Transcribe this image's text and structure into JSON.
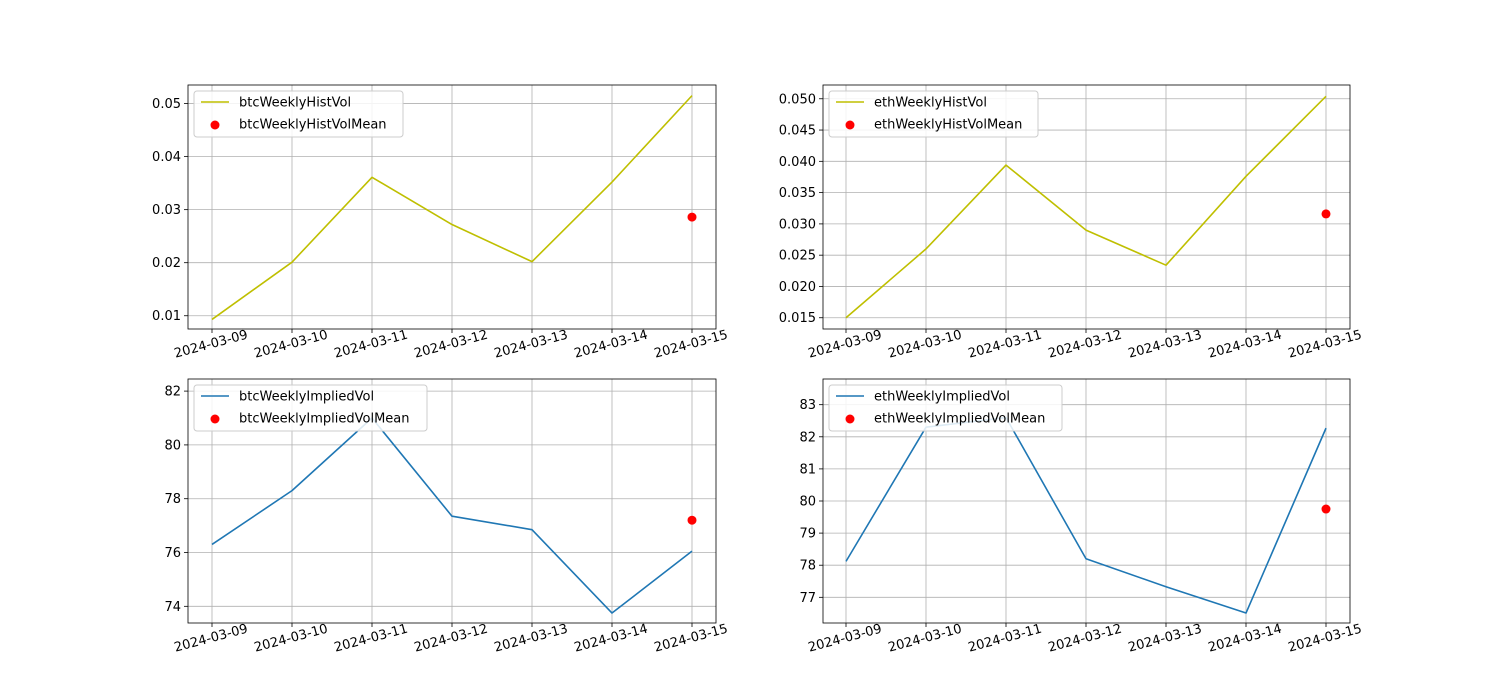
{
  "chart_data": [
    {
      "type": "line",
      "x": [
        "2024-03-09",
        "2024-03-10",
        "2024-03-11",
        "2024-03-12",
        "2024-03-13",
        "2024-03-14",
        "2024-03-15"
      ],
      "series": [
        {
          "name": "btcWeeklyHistVol",
          "kind": "line",
          "color": "#bfbf00",
          "values": [
            0.0093,
            0.0201,
            0.0361,
            0.0272,
            0.0202,
            0.0352,
            0.0515
          ]
        },
        {
          "name": "btcWeeklyHistVolMean",
          "kind": "scatter",
          "color": "#ff0000",
          "points": [
            {
              "x": "2024-03-15",
              "y": 0.0286
            }
          ]
        }
      ],
      "ylim": [
        0.0075,
        0.0535
      ],
      "yticks": [
        "0.01",
        "0.02",
        "0.03",
        "0.04",
        "0.05"
      ],
      "ytick_values": [
        0.01,
        0.02,
        0.03,
        0.04,
        0.05
      ],
      "grid": true,
      "legend": "top-left"
    },
    {
      "type": "line",
      "x": [
        "2024-03-09",
        "2024-03-10",
        "2024-03-11",
        "2024-03-12",
        "2024-03-13",
        "2024-03-14",
        "2024-03-15"
      ],
      "series": [
        {
          "name": "ethWeeklyHistVol",
          "kind": "line",
          "color": "#bfbf00",
          "values": [
            0.015,
            0.026,
            0.0394,
            0.029,
            0.0234,
            0.0376,
            0.0504
          ]
        },
        {
          "name": "ethWeeklyHistVolMean",
          "kind": "scatter",
          "color": "#ff0000",
          "points": [
            {
              "x": "2024-03-15",
              "y": 0.0316
            }
          ]
        }
      ],
      "ylim": [
        0.0132,
        0.0522
      ],
      "yticks": [
        "0.015",
        "0.020",
        "0.025",
        "0.030",
        "0.035",
        "0.040",
        "0.045",
        "0.050"
      ],
      "ytick_values": [
        0.015,
        0.02,
        0.025,
        0.03,
        0.035,
        0.04,
        0.045,
        0.05
      ],
      "grid": true,
      "legend": "top-left"
    },
    {
      "type": "line",
      "x": [
        "2024-03-09",
        "2024-03-10",
        "2024-03-11",
        "2024-03-12",
        "2024-03-13",
        "2024-03-14",
        "2024-03-15"
      ],
      "series": [
        {
          "name": "btcWeeklyImpliedVol",
          "kind": "line",
          "color": "#1f77b4",
          "values": [
            76.3,
            78.3,
            81.0,
            77.35,
            76.85,
            73.75,
            76.05
          ]
        },
        {
          "name": "btcWeeklyImpliedVolMean",
          "kind": "scatter",
          "color": "#ff0000",
          "points": [
            {
              "x": "2024-03-15",
              "y": 77.2
            }
          ]
        }
      ],
      "ylim": [
        73.38,
        82.45
      ],
      "yticks": [
        "74",
        "76",
        "78",
        "80",
        "82"
      ],
      "ytick_values": [
        74,
        76,
        78,
        80,
        82
      ],
      "grid": true,
      "legend": "top-left"
    },
    {
      "type": "line",
      "x": [
        "2024-03-09",
        "2024-03-10",
        "2024-03-11",
        "2024-03-12",
        "2024-03-13",
        "2024-03-14",
        "2024-03-15"
      ],
      "series": [
        {
          "name": "ethWeeklyImpliedVol",
          "kind": "line",
          "color": "#1f77b4",
          "values": [
            78.12,
            82.3,
            82.6,
            78.2,
            77.33,
            76.51,
            82.27
          ]
        },
        {
          "name": "ethWeeklyImpliedVolMean",
          "kind": "scatter",
          "color": "#ff0000",
          "points": [
            {
              "x": "2024-03-15",
              "y": 79.75
            }
          ]
        }
      ],
      "ylim": [
        76.2,
        83.8
      ],
      "yticks": [
        "77",
        "78",
        "79",
        "80",
        "81",
        "82",
        "83"
      ],
      "ytick_values": [
        77,
        78,
        79,
        80,
        81,
        82,
        83
      ],
      "grid": true,
      "legend": "top-left"
    }
  ]
}
